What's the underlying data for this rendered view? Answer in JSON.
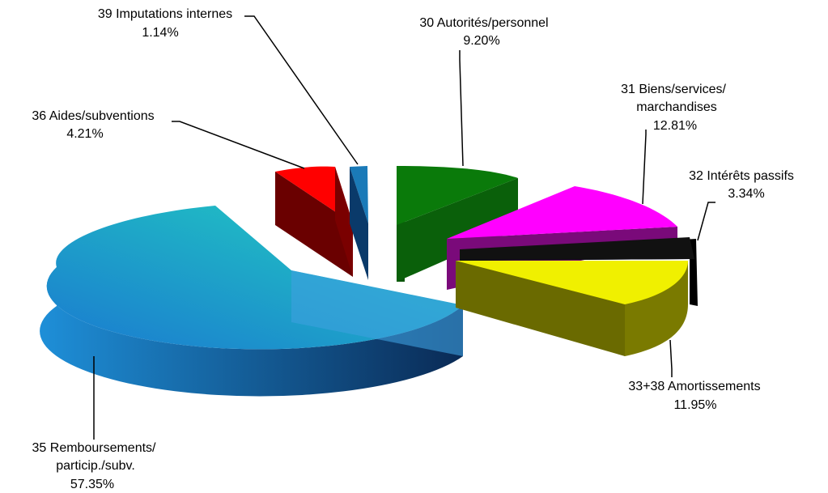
{
  "chart_data": {
    "type": "pie",
    "style": "3d-exploded",
    "slices": [
      {
        "code": "30",
        "label": "Autorités/personnel",
        "value": 9.2,
        "display": "9.20%",
        "color": "#0a7a0a",
        "dark": "#0a560a"
      },
      {
        "code": "31",
        "label": "Biens/services/",
        "label2": "marchandises",
        "value": 12.81,
        "display": "12.81%",
        "color": "#ff00ff",
        "dark": "#7a0a7a"
      },
      {
        "code": "32",
        "label": "Intérêts passifs",
        "value": 3.34,
        "display": "3.34%",
        "color": "#111111",
        "dark": "#000000"
      },
      {
        "code": "33+38",
        "label": "Amortissements",
        "value": 11.95,
        "display": "11.95%",
        "color": "#f0f000",
        "dark": "#7a7a00"
      },
      {
        "code": "35",
        "label": "Remboursements/",
        "label2": "particip./subv.",
        "value": 57.35,
        "display": "57.35%",
        "color": "#1ea0c8",
        "dark": "#0a3a6a"
      },
      {
        "code": "36",
        "label": "Aides/subventions",
        "value": 4.21,
        "display": "4.21%",
        "color": "#ff0000",
        "dark": "#6a0000"
      },
      {
        "code": "39",
        "label": "Imputations internes",
        "value": 1.14,
        "display": "1.14%",
        "color": "#1a7ab8",
        "dark": "#0a3a6a"
      }
    ]
  }
}
